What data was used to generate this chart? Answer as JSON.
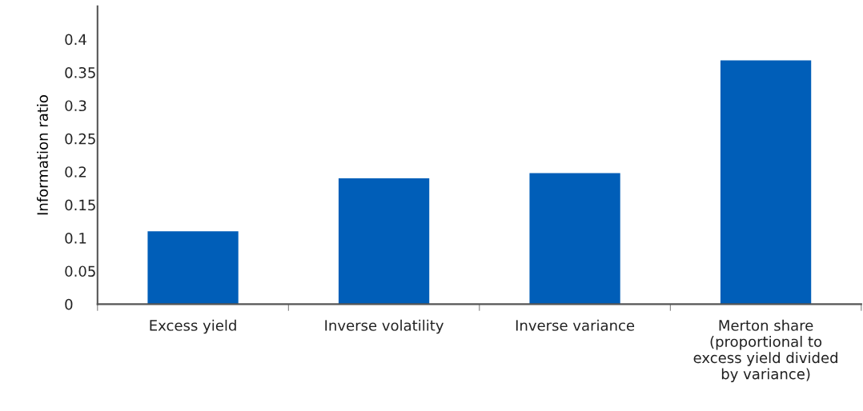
{
  "chart_data": {
    "type": "bar",
    "ylabel": "Information ratio",
    "categories": [
      "Excess yield",
      "Inverse volatility",
      "Inverse variance",
      "Merton share\n(proportional to\nexcess yield divided\nby variance)"
    ],
    "values": [
      0.11,
      0.19,
      0.198,
      0.368
    ],
    "color": "#005eb8",
    "ylim": [
      0,
      0.45
    ],
    "yticks": [
      0,
      0.05,
      0.1,
      0.15,
      0.2,
      0.25,
      0.3,
      0.35,
      0.4
    ],
    "grid": false
  }
}
